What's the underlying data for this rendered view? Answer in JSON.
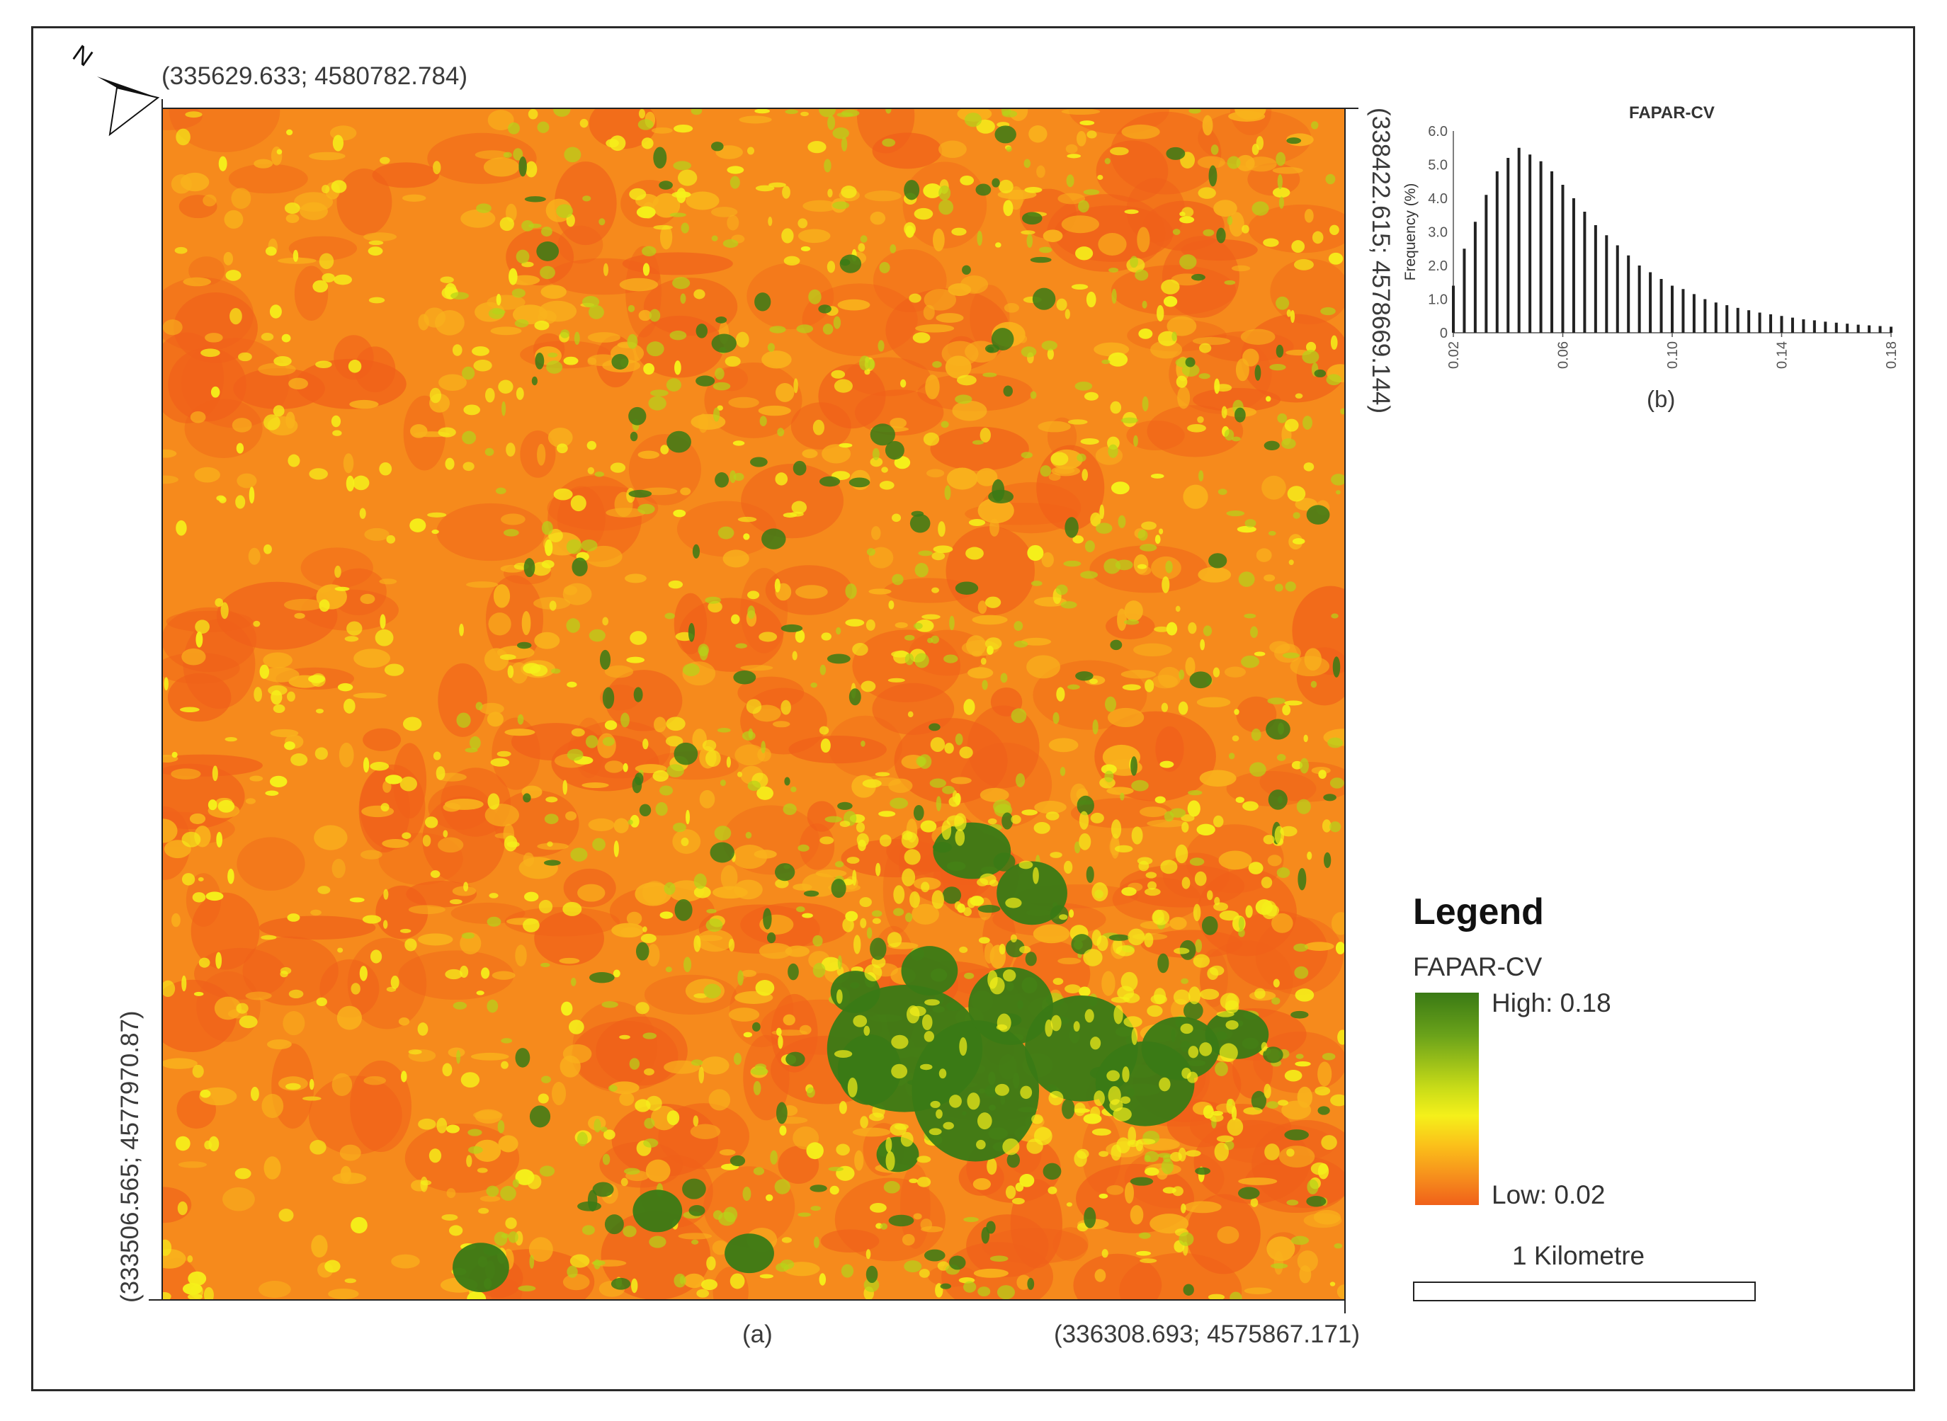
{
  "map": {
    "coord_top_left": "(335629.633; 4580782.784)",
    "coord_bottom_right": "(336308.693; 4575867.171)",
    "coord_right_top": "(338422.615; 4578669.144)",
    "coord_left_bottom": "(333506.565; 4577970.87)",
    "caption": "(a)",
    "north_label": "N",
    "colors": {
      "low": "#f0601a",
      "mid_orange": "#f68a1c",
      "yellow": "#f5f01a",
      "lime": "#b5d41a",
      "high": "#3a7a15"
    }
  },
  "chart_data": {
    "type": "bar",
    "title": "FAPAR-CV",
    "xlabel": "",
    "ylabel": "Frequency (%)",
    "caption": "(b)",
    "ylim": [
      0,
      6.0
    ],
    "xlim": [
      0.02,
      0.18
    ],
    "yticks": [
      "0",
      "1.0",
      "2.0",
      "3.0",
      "4.0",
      "5.0",
      "6.0"
    ],
    "xticks": [
      "0.02",
      "0.06",
      "0.10",
      "0.14",
      "0.18"
    ],
    "x": [
      0.02,
      0.024,
      0.028,
      0.032,
      0.036,
      0.04,
      0.044,
      0.048,
      0.052,
      0.056,
      0.06,
      0.064,
      0.068,
      0.072,
      0.076,
      0.08,
      0.084,
      0.088,
      0.092,
      0.096,
      0.1,
      0.104,
      0.108,
      0.112,
      0.116,
      0.12,
      0.124,
      0.128,
      0.132,
      0.136,
      0.14,
      0.144,
      0.148,
      0.152,
      0.156,
      0.16,
      0.164,
      0.168,
      0.172,
      0.176,
      0.18
    ],
    "values": [
      1.4,
      2.5,
      3.3,
      4.1,
      4.8,
      5.2,
      5.5,
      5.3,
      5.1,
      4.8,
      4.4,
      4.0,
      3.6,
      3.2,
      2.9,
      2.6,
      2.3,
      2.0,
      1.8,
      1.6,
      1.4,
      1.3,
      1.15,
      1.0,
      0.9,
      0.82,
      0.74,
      0.67,
      0.6,
      0.55,
      0.5,
      0.45,
      0.4,
      0.37,
      0.33,
      0.3,
      0.27,
      0.24,
      0.22,
      0.2,
      0.18
    ]
  },
  "legend": {
    "title": "Legend",
    "variable": "FAPAR-CV",
    "high": "High: 0.18",
    "low": "Low: 0.02"
  },
  "scale": {
    "label": "1 Kilometre"
  }
}
